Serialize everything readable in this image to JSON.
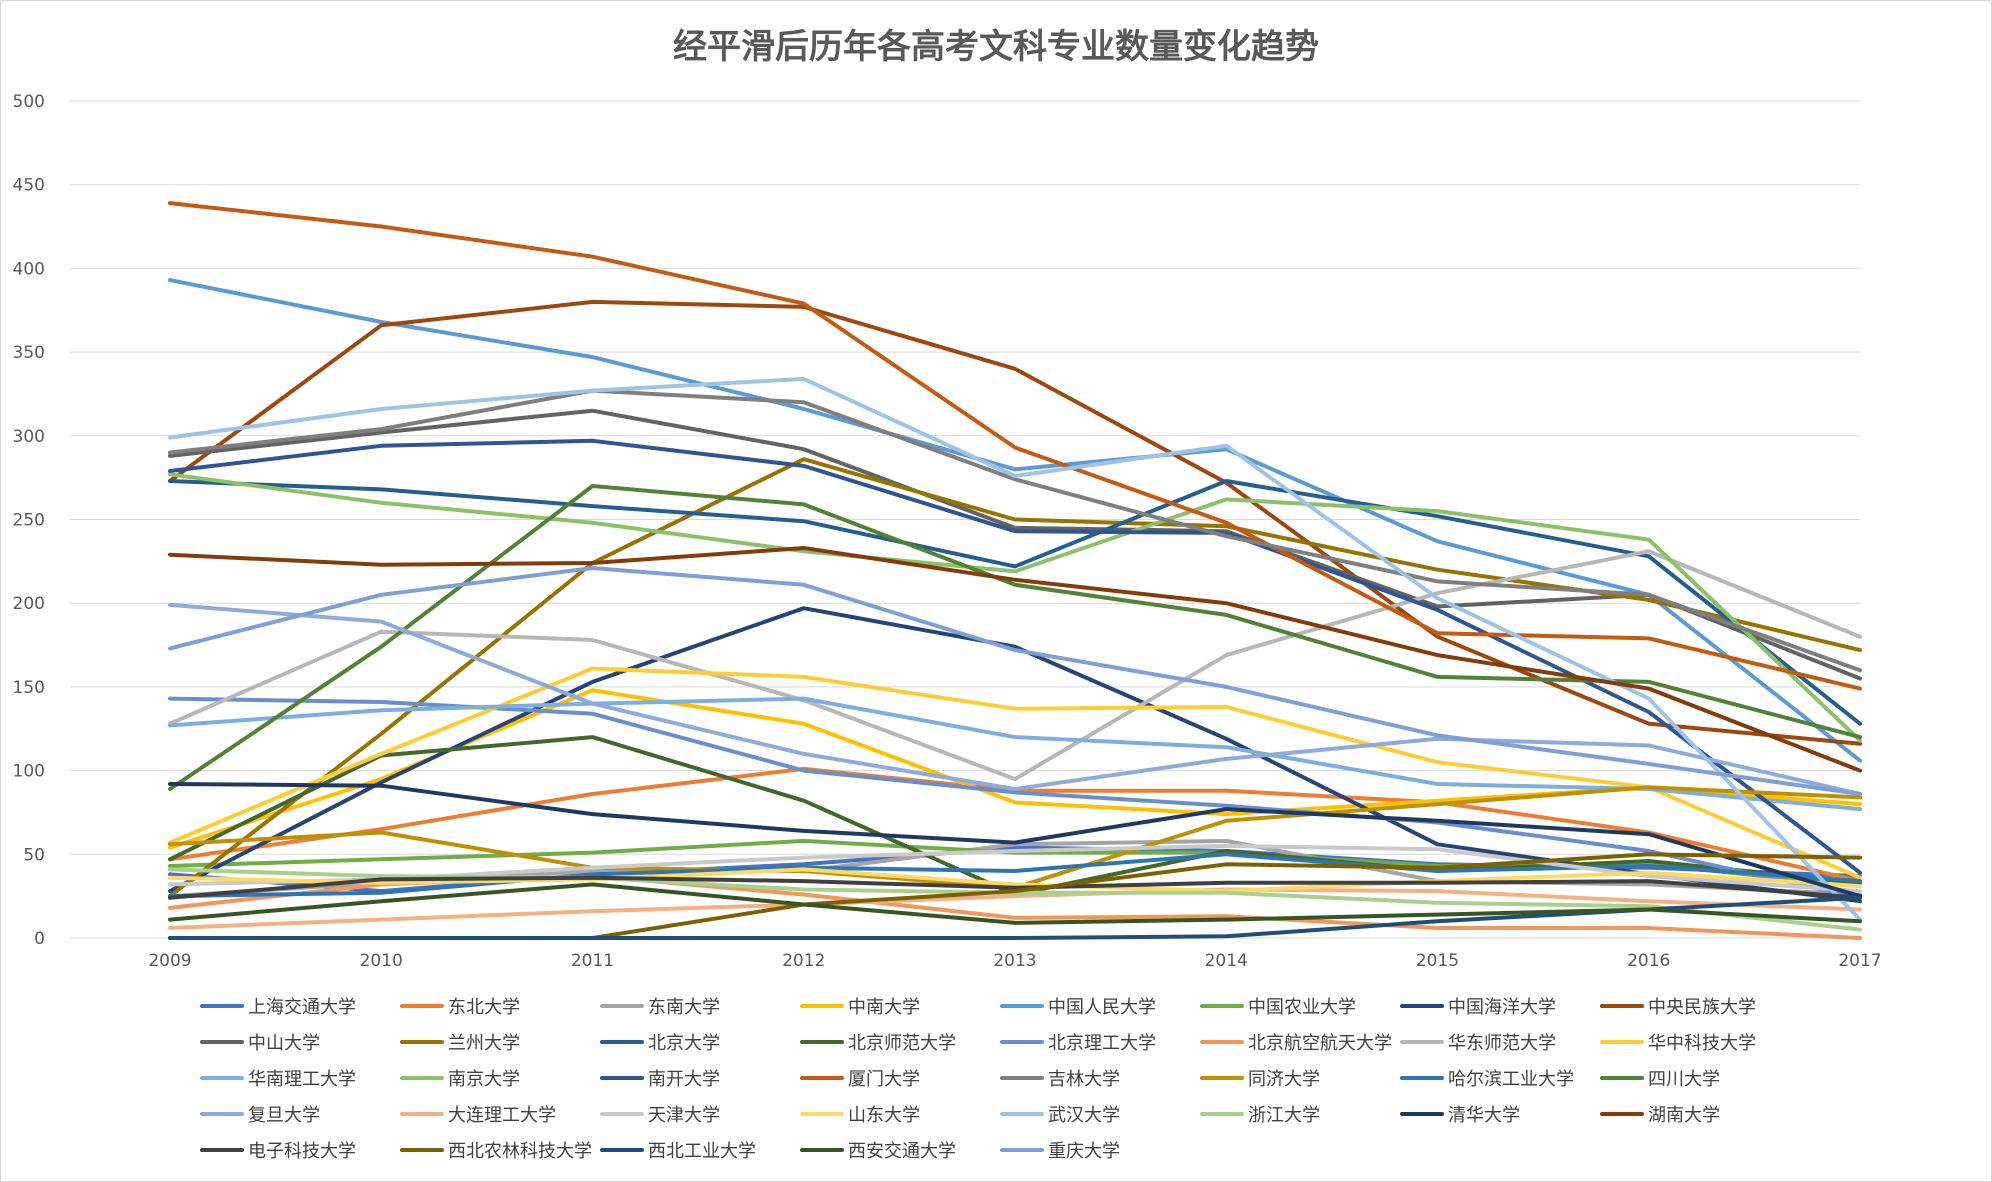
{
  "chart_data": {
    "type": "line",
    "title": "经平滑后历年各高考文科专业数量变化趋势",
    "xlabel": "",
    "ylabel": "",
    "x": [
      "2009",
      "2010",
      "2011",
      "2012",
      "2013",
      "2014",
      "2015",
      "2016",
      "2017"
    ],
    "ylim": [
      0,
      500
    ],
    "yticks": [
      "0",
      "50",
      "100",
      "150",
      "200",
      "250",
      "300",
      "350",
      "400",
      "450",
      "500"
    ],
    "grid": true,
    "legend_position": "bottom",
    "series": [
      {
        "name": "上海交通大学",
        "color": "#4472c4",
        "values": [
          38,
          28,
          38,
          44,
          54,
          52,
          44,
          42,
          37
        ]
      },
      {
        "name": "东北大学",
        "color": "#ed7d31",
        "values": [
          47,
          65,
          86,
          101,
          88,
          88,
          81,
          63,
          34
        ]
      },
      {
        "name": "东南大学",
        "color": "#a5a5a5",
        "values": [
          25,
          33,
          40,
          40,
          56,
          58,
          34,
          32,
          26
        ]
      },
      {
        "name": "中南大学",
        "color": "#ffc000",
        "values": [
          54,
          95,
          148,
          128,
          81,
          74,
          82,
          90,
          80
        ]
      },
      {
        "name": "中国人民大学",
        "color": "#5b9bd5",
        "values": [
          393,
          368,
          347,
          316,
          280,
          292,
          237,
          205,
          106
        ]
      },
      {
        "name": "中国农业大学",
        "color": "#70ad47",
        "values": [
          43,
          47,
          51,
          58,
          51,
          51,
          43,
          44,
          31
        ]
      },
      {
        "name": "中国海洋大学",
        "color": "#264478",
        "values": [
          28,
          93,
          153,
          197,
          174,
          119,
          56,
          38,
          22
        ]
      },
      {
        "name": "中央民族大学",
        "color": "#9e480e",
        "values": [
          273,
          366,
          380,
          377,
          340,
          272,
          180,
          128,
          116
        ]
      },
      {
        "name": "中山大学",
        "color": "#636363",
        "values": [
          288,
          302,
          315,
          292,
          245,
          243,
          198,
          205,
          155
        ]
      },
      {
        "name": "兰州大学",
        "color": "#997300",
        "values": [
          25,
          122,
          224,
          286,
          250,
          246,
          220,
          202,
          172
        ]
      },
      {
        "name": "北京大学",
        "color": "#255e91",
        "values": [
          273,
          268,
          258,
          249,
          222,
          273,
          252,
          228,
          128
        ]
      },
      {
        "name": "北京师范大学",
        "color": "#43682b",
        "values": [
          47,
          109,
          120,
          82,
          26,
          52,
          40,
          46,
          33
        ]
      },
      {
        "name": "北京理工大学",
        "color": "#698ed0",
        "values": [
          143,
          141,
          134,
          100,
          87,
          79,
          69,
          52,
          24
        ]
      },
      {
        "name": "北京航空航天大学",
        "color": "#f1975a",
        "values": [
          18,
          32,
          37,
          26,
          12,
          13,
          6,
          6,
          0
        ]
      },
      {
        "name": "华东师范大学",
        "color": "#b7b7b7",
        "values": [
          128,
          183,
          178,
          142,
          95,
          169,
          206,
          231,
          180
        ]
      },
      {
        "name": "华中科技大学",
        "color": "#ffcd33",
        "values": [
          57,
          110,
          161,
          156,
          137,
          138,
          105,
          90,
          36
        ]
      },
      {
        "name": "华南理工大学",
        "color": "#7cafdd",
        "values": [
          127,
          136,
          140,
          143,
          120,
          114,
          92,
          89,
          77
        ]
      },
      {
        "name": "南京大学",
        "color": "#8cc168",
        "values": [
          277,
          260,
          248,
          231,
          219,
          262,
          255,
          238,
          118
        ]
      },
      {
        "name": "南开大学",
        "color": "#2f5597",
        "values": [
          279,
          294,
          297,
          282,
          243,
          242,
          196,
          135,
          39
        ]
      },
      {
        "name": "厦门大学",
        "color": "#c55a11",
        "values": [
          439,
          425,
          407,
          379,
          293,
          248,
          182,
          179,
          149
        ]
      },
      {
        "name": "吉林大学",
        "color": "#7f7f7f",
        "values": [
          290,
          304,
          327,
          320,
          274,
          240,
          213,
          205,
          160
        ]
      },
      {
        "name": "同济大学",
        "color": "#bf9000",
        "values": [
          56,
          63,
          42,
          40,
          30,
          70,
          80,
          90,
          84
        ]
      },
      {
        "name": "哈尔滨工业大学",
        "color": "#2e75b6",
        "values": [
          25,
          27,
          38,
          42,
          40,
          50,
          40,
          43,
          34
        ]
      },
      {
        "name": "四川大学",
        "color": "#548235",
        "values": [
          89,
          174,
          270,
          259,
          211,
          193,
          156,
          153,
          120
        ]
      },
      {
        "name": "复旦大学",
        "color": "#8faadc",
        "values": [
          199,
          189,
          140,
          110,
          89,
          107,
          119,
          115,
          86
        ]
      },
      {
        "name": "大连理工大学",
        "color": "#f4b183",
        "values": [
          6,
          11,
          16,
          20,
          25,
          29,
          28,
          22,
          17
        ]
      },
      {
        "name": "天津大学",
        "color": "#c9c9c9",
        "values": [
          32,
          35,
          42,
          48,
          52,
          55,
          53,
          37,
          28
        ]
      },
      {
        "name": "山东大学",
        "color": "#ffd966",
        "values": [
          36,
          33,
          35,
          41,
          32,
          28,
          34,
          39,
          31
        ]
      },
      {
        "name": "武汉大学",
        "color": "#9dc3e6",
        "values": [
          299,
          316,
          327,
          334,
          276,
          294,
          203,
          143,
          11
        ]
      },
      {
        "name": "浙江大学",
        "color": "#a9d18e",
        "values": [
          41,
          37,
          36,
          29,
          27,
          27,
          21,
          19,
          5
        ]
      },
      {
        "name": "清华大学",
        "color": "#203864",
        "values": [
          92,
          91,
          74,
          64,
          57,
          77,
          70,
          62,
          25
        ]
      },
      {
        "name": "湖南大学",
        "color": "#843c0c",
        "values": [
          229,
          223,
          224,
          233,
          214,
          200,
          169,
          149,
          100
        ]
      },
      {
        "name": "电子科技大学",
        "color": "#404040",
        "values": [
          24,
          35,
          36,
          34,
          30,
          33,
          33,
          34,
          24
        ]
      },
      {
        "name": "西北农林科技大学",
        "color": "#7f6000",
        "values": [
          0,
          0,
          0,
          20,
          28,
          44,
          42,
          50,
          48
        ]
      },
      {
        "name": "西北工业大学",
        "color": "#1f4e79",
        "values": [
          0,
          0,
          0,
          0,
          0,
          1,
          10,
          17,
          24
        ]
      },
      {
        "name": "西安交通大学",
        "color": "#375623",
        "values": [
          11,
          22,
          32,
          20,
          9,
          11,
          14,
          17,
          10
        ]
      },
      {
        "name": "重庆大学",
        "color": "#7f9fd6",
        "values": [
          173,
          205,
          221,
          211,
          172,
          150,
          121,
          104,
          86
        ]
      }
    ]
  }
}
